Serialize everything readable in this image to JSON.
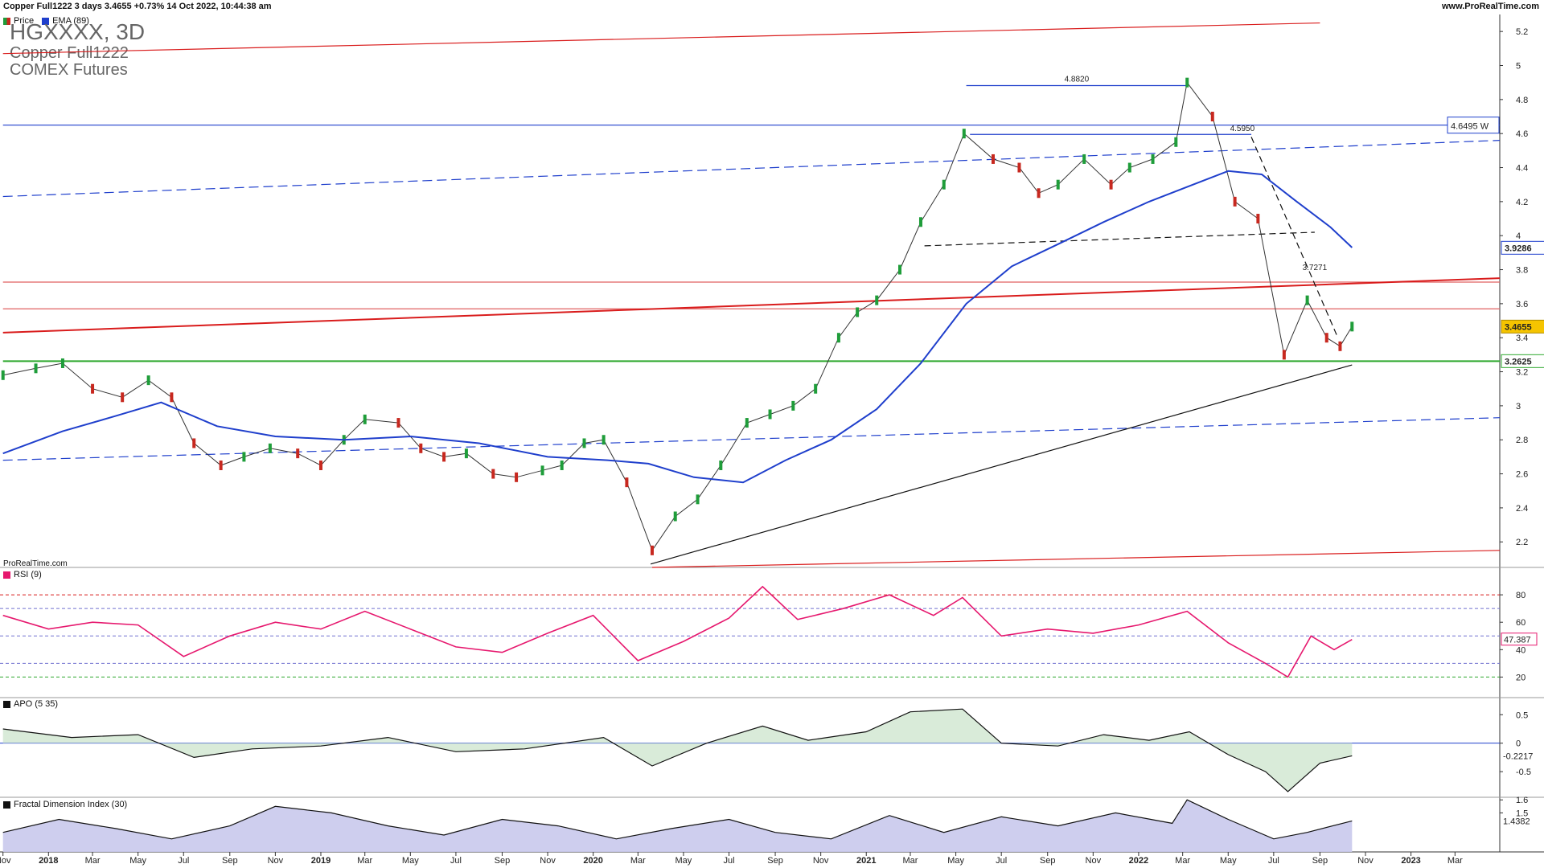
{
  "header": {
    "title": "Copper Full1222 3 days 3.4655 +0.73% 14 Oct 2022, 10:44:38 am",
    "site": "www.ProRealTime.com"
  },
  "watermark": {
    "symbol": "HGXXXX, 3D",
    "name": "Copper Full1222",
    "exchange": "COMEX Futures"
  },
  "footer_brand": "ProRealTime.com",
  "colors": {
    "price_up": "#1f9d3a",
    "price_down": "#c7281f",
    "ema": "#1f3fcc",
    "rsi": "#e6186e",
    "trend_red": "#d91c1c",
    "support_green": "#2ea82e"
  },
  "chart_data": [
    {
      "type": "line",
      "panel": "price",
      "title": "",
      "legend": [
        "Price",
        "EMA (89)"
      ],
      "y_ticks": [
        "5.2",
        "5",
        "4.8",
        "4.6",
        "4.4",
        "4.2",
        "4",
        "3.8",
        "3.6",
        "3.4",
        "3.2",
        "3",
        "2.8",
        "2.6",
        "2.4",
        "2.2"
      ],
      "ylim": [
        2.05,
        5.3
      ],
      "x_ticks": [
        "Nov",
        "2018",
        "Mar",
        "May",
        "Jul",
        "Sep",
        "Nov",
        "2019",
        "Mar",
        "May",
        "Jul",
        "Sep",
        "Nov",
        "2020",
        "Mar",
        "May",
        "Jul",
        "Sep",
        "Nov",
        "2021",
        "Mar",
        "May",
        "Jul",
        "Sep",
        "Nov",
        "2022",
        "Mar",
        "May",
        "Jul",
        "Sep",
        "Nov",
        "2023",
        "Mar"
      ],
      "x_dates": [
        "2017-11-01",
        "2018-01-01",
        "2018-03-01",
        "2018-05-01",
        "2018-07-01",
        "2018-09-01",
        "2018-11-01",
        "2019-01-01",
        "2019-03-01",
        "2019-05-01",
        "2019-07-01",
        "2019-09-01",
        "2019-11-01",
        "2020-01-01",
        "2020-03-01",
        "2020-05-01",
        "2020-07-01",
        "2020-09-01",
        "2020-11-01",
        "2021-01-01",
        "2021-03-01",
        "2021-05-01",
        "2021-07-01",
        "2021-09-01",
        "2021-11-01",
        "2022-01-01",
        "2022-03-01",
        "2022-05-01",
        "2022-07-01",
        "2022-09-01",
        "2022-11-01",
        "2023-01-01",
        "2023-03-01"
      ],
      "x_bold_ticks": [
        "2018",
        "2019",
        "2020",
        "2021",
        "2022",
        "2023"
      ],
      "series": [
        {
          "name": "Price",
          "x": [
            "2017-11-01",
            "2017-12-15",
            "2018-01-20",
            "2018-03-01",
            "2018-04-10",
            "2018-05-15",
            "2018-06-15",
            "2018-07-15",
            "2018-08-20",
            "2018-09-20",
            "2018-10-25",
            "2018-12-01",
            "2019-01-01",
            "2019-02-01",
            "2019-03-01",
            "2019-04-15",
            "2019-05-15",
            "2019-06-15",
            "2019-07-15",
            "2019-08-20",
            "2019-09-20",
            "2019-10-25",
            "2019-11-20",
            "2019-12-20",
            "2020-01-15",
            "2020-02-15",
            "2020-03-20",
            "2020-04-20",
            "2020-05-20",
            "2020-06-20",
            "2020-07-25",
            "2020-08-25",
            "2020-09-25",
            "2020-10-25",
            "2020-11-25",
            "2020-12-20",
            "2021-01-15",
            "2021-02-15",
            "2021-03-15",
            "2021-04-15",
            "2021-05-12",
            "2021-06-20",
            "2021-07-25",
            "2021-08-20",
            "2021-09-15",
            "2021-10-20",
            "2021-11-25",
            "2021-12-20",
            "2022-01-20",
            "2022-02-20",
            "2022-03-07",
            "2022-04-10",
            "2022-05-10",
            "2022-06-10",
            "2022-07-15",
            "2022-08-15",
            "2022-09-10",
            "2022-09-28",
            "2022-10-14"
          ],
          "y": [
            3.18,
            3.22,
            3.25,
            3.1,
            3.05,
            3.15,
            3.05,
            2.78,
            2.65,
            2.7,
            2.75,
            2.72,
            2.65,
            2.8,
            2.92,
            2.9,
            2.75,
            2.7,
            2.72,
            2.6,
            2.58,
            2.62,
            2.65,
            2.78,
            2.8,
            2.55,
            2.15,
            2.35,
            2.45,
            2.65,
            2.9,
            2.95,
            3.0,
            3.1,
            3.4,
            3.55,
            3.62,
            3.8,
            4.08,
            4.3,
            4.6,
            4.45,
            4.4,
            4.25,
            4.3,
            4.45,
            4.3,
            4.4,
            4.45,
            4.55,
            4.9,
            4.7,
            4.2,
            4.1,
            3.3,
            3.62,
            3.4,
            3.35,
            3.4655
          ]
        },
        {
          "name": "EMA (89)",
          "x": [
            "2017-11-01",
            "2018-01-20",
            "2018-04-01",
            "2018-06-01",
            "2018-08-15",
            "2018-11-01",
            "2019-02-01",
            "2019-05-01",
            "2019-08-01",
            "2019-11-01",
            "2020-01-20",
            "2020-03-15",
            "2020-05-15",
            "2020-07-20",
            "2020-09-15",
            "2020-11-15",
            "2021-01-15",
            "2021-03-15",
            "2021-05-15",
            "2021-07-15",
            "2021-09-15",
            "2021-11-15",
            "2022-01-15",
            "2022-03-15",
            "2022-05-01",
            "2022-06-15",
            "2022-08-01",
            "2022-09-15",
            "2022-10-14"
          ],
          "y": [
            2.72,
            2.85,
            2.94,
            3.02,
            2.88,
            2.82,
            2.8,
            2.82,
            2.78,
            2.7,
            2.68,
            2.66,
            2.58,
            2.55,
            2.68,
            2.8,
            2.98,
            3.25,
            3.6,
            3.82,
            3.95,
            4.08,
            4.2,
            4.3,
            4.38,
            4.36,
            4.2,
            4.05,
            3.93
          ]
        }
      ],
      "trendlines": [
        {
          "name": "upper-red-channel",
          "x": [
            "2017-11-01",
            "2022-09-01"
          ],
          "y": [
            5.07,
            5.25
          ]
        },
        {
          "name": "lower-red-channel",
          "x": [
            "2020-03-20",
            "2023-04-30"
          ],
          "y": [
            2.05,
            2.15
          ]
        },
        {
          "name": "mid-red-trend",
          "x": [
            "2017-11-01",
            "2023-04-30"
          ],
          "y": [
            3.43,
            3.75
          ]
        },
        {
          "name": "upper-blue-dashed",
          "x": [
            "2017-11-01",
            "2023-04-30"
          ],
          "y": [
            4.23,
            4.56
          ]
        },
        {
          "name": "lower-blue-dashed",
          "x": [
            "2017-11-01",
            "2023-04-30"
          ],
          "y": [
            2.68,
            2.93
          ]
        },
        {
          "name": "black-support",
          "x": [
            "2020-03-18",
            "2022-10-14"
          ],
          "y": [
            2.07,
            3.24
          ]
        },
        {
          "name": "black-dashed-neck",
          "x": [
            "2021-03-20",
            "2022-08-25"
          ],
          "y": [
            3.94,
            4.02
          ]
        },
        {
          "name": "black-dashed-fall",
          "x": [
            "2022-06-01",
            "2022-09-25"
          ],
          "y": [
            4.58,
            3.4
          ]
        }
      ],
      "levels": [
        {
          "name": "4.8820",
          "y": 4.882,
          "x": [
            "2021-05-15",
            "2022-03-07"
          ],
          "color": "#1f3fcc"
        },
        {
          "name": "4.5950",
          "y": 4.595,
          "x": [
            "2021-05-20",
            "2022-06-01"
          ],
          "color": "#1f3fcc"
        },
        {
          "name": "4.6495 W",
          "y": 4.6495,
          "x": [
            "2017-11-01",
            "2023-04-30"
          ],
          "color": "#1f3fcc"
        },
        {
          "name": "3.7271",
          "y": 3.7271,
          "x": [
            "2017-11-01",
            "2023-04-30"
          ],
          "color": "#e06060"
        },
        {
          "name": "",
          "y": 3.57,
          "x": [
            "2017-11-01",
            "2023-04-30"
          ],
          "color": "#e06060"
        },
        {
          "name": "3.2625",
          "y": 3.2625,
          "x": [
            "2017-11-01",
            "2023-04-30"
          ],
          "color": "#2ea82e"
        }
      ],
      "price_labels": [
        "3.4655",
        "3.9286",
        "4.6495 W",
        "3.2625"
      ],
      "annotations": [
        "4.8820",
        "4.5950",
        "3.7271"
      ]
    },
    {
      "type": "line",
      "panel": "rsi",
      "title": "RSI (9)",
      "y_ticks": [
        "80",
        "60",
        "40",
        "20"
      ],
      "ylim": [
        5,
        100
      ],
      "guides": [
        80,
        70,
        50,
        30,
        20
      ],
      "last_value": "47.387",
      "series": [
        {
          "name": "RSI (9)",
          "x": [
            "2017-11-01",
            "2018-01-01",
            "2018-03-01",
            "2018-05-01",
            "2018-07-01",
            "2018-09-01",
            "2018-11-01",
            "2019-01-01",
            "2019-03-01",
            "2019-05-01",
            "2019-07-01",
            "2019-09-01",
            "2019-11-01",
            "2020-01-01",
            "2020-03-01",
            "2020-05-01",
            "2020-07-01",
            "2020-08-15",
            "2020-10-01",
            "2020-12-01",
            "2021-02-01",
            "2021-04-01",
            "2021-05-10",
            "2021-07-01",
            "2021-09-01",
            "2021-11-01",
            "2022-01-01",
            "2022-03-07",
            "2022-05-01",
            "2022-06-20",
            "2022-07-20",
            "2022-08-20",
            "2022-09-20",
            "2022-10-14"
          ],
          "y": [
            65,
            55,
            60,
            58,
            35,
            50,
            60,
            55,
            68,
            55,
            42,
            38,
            52,
            65,
            32,
            46,
            63,
            86,
            62,
            70,
            80,
            65,
            78,
            50,
            55,
            52,
            58,
            68,
            45,
            30,
            20,
            50,
            40,
            47.387
          ]
        }
      ]
    },
    {
      "type": "area",
      "panel": "apo",
      "title": "APO (5 35)",
      "y_ticks": [
        "0.5",
        "0",
        "-0.5"
      ],
      "ylim": [
        -0.95,
        0.8
      ],
      "last_value": "-0.2217",
      "series": [
        {
          "name": "APO (5 35)",
          "x": [
            "2017-11-01",
            "2018-02-01",
            "2018-05-01",
            "2018-07-15",
            "2018-10-01",
            "2019-01-01",
            "2019-04-01",
            "2019-07-01",
            "2019-10-01",
            "2020-01-15",
            "2020-03-20",
            "2020-06-01",
            "2020-08-15",
            "2020-10-15",
            "2021-01-01",
            "2021-03-01",
            "2021-05-10",
            "2021-07-01",
            "2021-09-15",
            "2021-11-15",
            "2022-01-15",
            "2022-03-10",
            "2022-05-01",
            "2022-06-20",
            "2022-07-20",
            "2022-09-01",
            "2022-10-14"
          ],
          "y": [
            0.25,
            0.1,
            0.15,
            -0.25,
            -0.1,
            -0.05,
            0.1,
            -0.15,
            -0.1,
            0.1,
            -0.4,
            0.0,
            0.3,
            0.05,
            0.2,
            0.55,
            0.6,
            0.0,
            -0.05,
            0.15,
            0.05,
            0.2,
            -0.2,
            -0.5,
            -0.85,
            -0.35,
            -0.2217
          ]
        }
      ]
    },
    {
      "type": "area",
      "panel": "fdi",
      "title": "Fractal Dimension Index (30)",
      "y_ticks": [
        "1.6",
        "1.5"
      ],
      "ylim": [
        1.2,
        1.62
      ],
      "last_value": "1.4382",
      "series": [
        {
          "name": "Fractal Dimension Index (30)",
          "x": [
            "2017-11-01",
            "2018-01-15",
            "2018-04-01",
            "2018-06-15",
            "2018-09-01",
            "2018-11-01",
            "2019-01-15",
            "2019-04-01",
            "2019-06-15",
            "2019-09-01",
            "2019-11-15",
            "2020-02-01",
            "2020-04-15",
            "2020-07-01",
            "2020-09-01",
            "2020-11-15",
            "2021-02-01",
            "2021-04-15",
            "2021-07-01",
            "2021-09-15",
            "2021-12-01",
            "2022-02-15",
            "2022-03-07",
            "2022-05-01",
            "2022-07-01",
            "2022-08-15",
            "2022-10-14"
          ],
          "y": [
            1.35,
            1.45,
            1.38,
            1.3,
            1.4,
            1.55,
            1.5,
            1.4,
            1.33,
            1.45,
            1.4,
            1.3,
            1.38,
            1.45,
            1.35,
            1.3,
            1.48,
            1.35,
            1.47,
            1.4,
            1.5,
            1.42,
            1.6,
            1.45,
            1.3,
            1.35,
            1.4382
          ]
        }
      ]
    }
  ]
}
